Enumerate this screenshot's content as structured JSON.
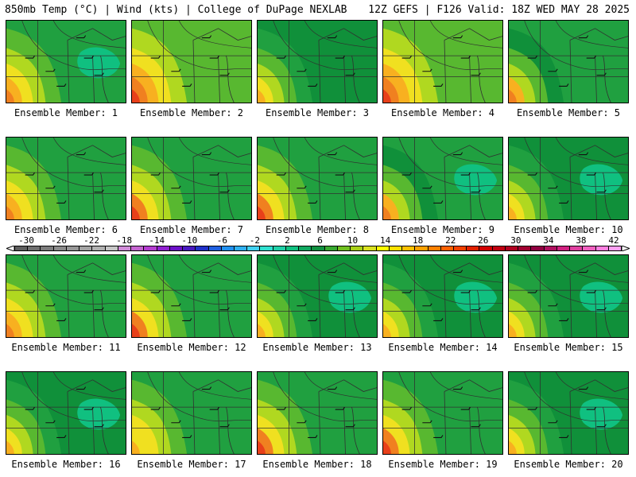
{
  "header": {
    "left": "850mb Temp (°C) | Wind (kts) | College of DuPage NEXLAB",
    "right": "12Z GEFS | F126 Valid: 18Z WED MAY 28 2025"
  },
  "colorbar": {
    "tick_labels": [
      "-30",
      "-26",
      "-22",
      "-18",
      "-14",
      "-10",
      "-6",
      "-2",
      "2",
      "6",
      "10",
      "14",
      "18",
      "22",
      "26",
      "30",
      "34",
      "38",
      "42"
    ],
    "colors": [
      "#5e5e5e",
      "#6f6f6f",
      "#7c7c7c",
      "#8a8a8a",
      "#979797",
      "#a3a3a3",
      "#b0b0b0",
      "#c6c6c6",
      "#d08cd8",
      "#c464d0",
      "#b43cd0",
      "#9020d0",
      "#6c10c8",
      "#4818c0",
      "#2030c8",
      "#2060e0",
      "#2090f0",
      "#30b0f0",
      "#40d0f0",
      "#30e0d0",
      "#20d0a8",
      "#10c080",
      "#10a860",
      "#109040",
      "#38a830",
      "#70c020",
      "#a8d018",
      "#d8e020",
      "#ffff00",
      "#ffe000",
      "#ffc000",
      "#ffa000",
      "#ff8000",
      "#ff6000",
      "#f04000",
      "#e02000",
      "#d00000",
      "#c00010",
      "#b00020",
      "#a00030",
      "#900040",
      "#b01060",
      "#d02080",
      "#e040a0",
      "#f060c0",
      "#ff80e0",
      "#ffa0f0"
    ]
  },
  "panel_palette": {
    "warm_dark": "#e8401a",
    "warm": "#f08020",
    "orange": "#f8b020",
    "yellow": "#f0e020",
    "lime": "#b0d820",
    "green_light": "#58b830",
    "green": "#20a040",
    "green_dark": "#10903a",
    "teal": "#10c080",
    "line": "#303030"
  },
  "members": [
    {
      "label": "Ensemble Member: 1",
      "profile": "warm_sw",
      "teal": true
    },
    {
      "label": "Ensemble Member: 2",
      "profile": "warm_sw_hot",
      "teal": false
    },
    {
      "label": "Ensemble Member: 3",
      "profile": "green_north",
      "teal": false
    },
    {
      "label": "Ensemble Member: 4",
      "profile": "warm_sw_hot",
      "teal": false
    },
    {
      "label": "Ensemble Member: 5",
      "profile": "green_mid",
      "teal": false
    },
    {
      "label": "Ensemble Member: 6",
      "profile": "warm_sw",
      "teal": false
    },
    {
      "label": "Ensemble Member: 7",
      "profile": "warm_west",
      "teal": false
    },
    {
      "label": "Ensemble Member: 8",
      "profile": "warm_west",
      "teal": false
    },
    {
      "label": "Ensemble Member: 9",
      "profile": "green_mid",
      "teal": true
    },
    {
      "label": "Ensemble Member: 10",
      "profile": "green_north",
      "teal": true
    },
    {
      "label": "Ensemble Member: 11",
      "profile": "warm_sw",
      "teal": false
    },
    {
      "label": "Ensemble Member: 12",
      "profile": "warm_west",
      "teal": false
    },
    {
      "label": "Ensemble Member: 13",
      "profile": "green_teal",
      "teal": true
    },
    {
      "label": "Ensemble Member: 14",
      "profile": "green_teal",
      "teal": true
    },
    {
      "label": "Ensemble Member: 15",
      "profile": "green_teal",
      "teal": true
    },
    {
      "label": "Ensemble Member: 16",
      "profile": "green_teal",
      "teal": true
    },
    {
      "label": "Ensemble Member: 17",
      "profile": "yellow_west",
      "teal": false
    },
    {
      "label": "Ensemble Member: 18",
      "profile": "warm_west",
      "teal": false
    },
    {
      "label": "Ensemble Member: 19",
      "profile": "warm_west",
      "teal": false
    },
    {
      "label": "Ensemble Member: 20",
      "profile": "green_teal",
      "teal": true
    }
  ]
}
